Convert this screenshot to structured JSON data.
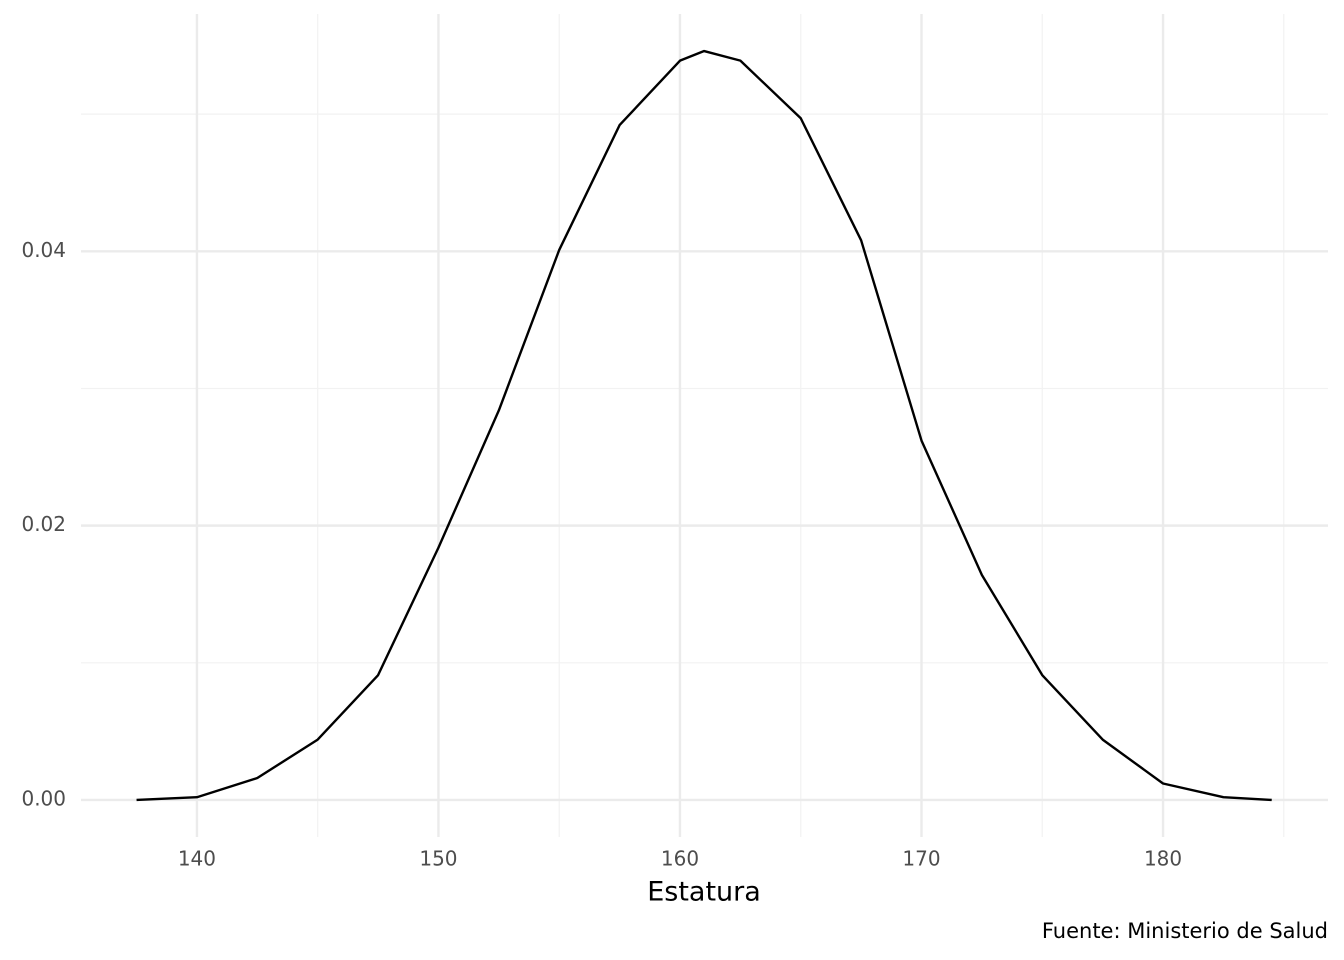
{
  "chart_data": {
    "type": "line",
    "x_label": "Estatura",
    "caption": "Fuente: Ministerio de Salud",
    "x": [
      137.5,
      140,
      142.5,
      145,
      147.5,
      150,
      152.5,
      155,
      157.5,
      160,
      161,
      162.5,
      165,
      167.5,
      170,
      172.5,
      175,
      177.5,
      180,
      182.5,
      184.5
    ],
    "series": [
      {
        "color": "#000000",
        "values": [
          0,
          0.0002,
          0.0016,
          0.0044,
          0.0091,
          0.0184,
          0.0284,
          0.0401,
          0.0492,
          0.0539,
          0.0546,
          0.0539,
          0.0497,
          0.0408,
          0.0262,
          0.0164,
          0.0091,
          0.0044,
          0.0012,
          0.0002,
          0
        ]
      }
    ],
    "xlim": [
      135.2,
      186.83
    ],
    "ylim": [
      -0.0027,
      0.0573
    ],
    "xticks": [
      140,
      150,
      160,
      170,
      180
    ],
    "yticks": [
      {
        "value": 0,
        "label": "0.00"
      },
      0.02,
      0.04
    ],
    "x_minor_grid": [
      145,
      155,
      165,
      175,
      185
    ],
    "y_minor_grid": [
      0.01,
      0.03,
      0.05
    ],
    "grid": true
  }
}
